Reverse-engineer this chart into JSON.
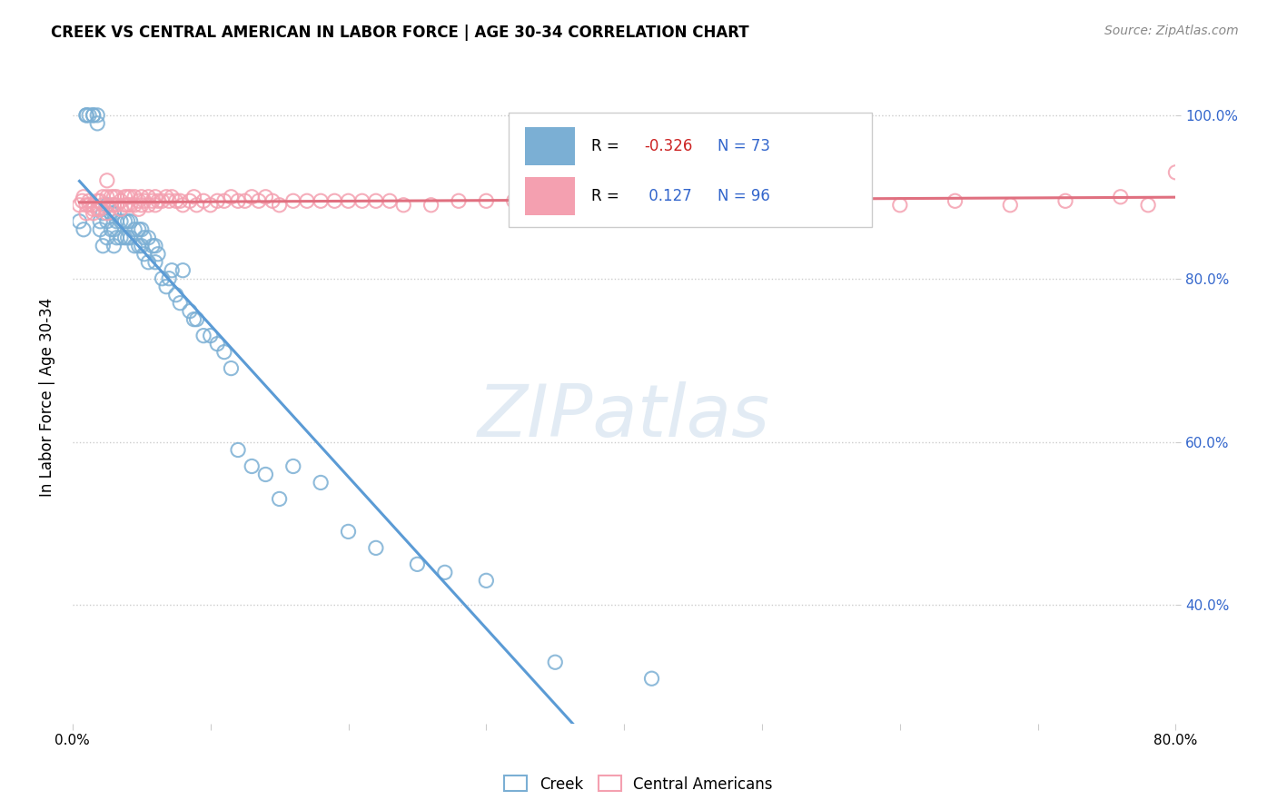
{
  "title": "CREEK VS CENTRAL AMERICAN IN LABOR FORCE | AGE 30-34 CORRELATION CHART",
  "source_text": "Source: ZipAtlas.com",
  "ylabel": "In Labor Force | Age 30-34",
  "ytick_labels": [
    "40.0%",
    "60.0%",
    "80.0%",
    "100.0%"
  ],
  "ytick_values": [
    0.4,
    0.6,
    0.8,
    1.0
  ],
  "xlim": [
    0.0,
    0.8
  ],
  "ylim": [
    0.255,
    1.055
  ],
  "creek_color": "#7bafd4",
  "creek_line_color": "#5b9bd5",
  "central_color": "#f4a0b0",
  "central_line_color": "#e07080",
  "creek_R": -0.326,
  "creek_N": 73,
  "central_R": 0.127,
  "central_N": 96,
  "legend_creek": "Creek",
  "legend_central": "Central Americans",
  "creek_x": [
    0.005,
    0.008,
    0.01,
    0.01,
    0.012,
    0.015,
    0.015,
    0.018,
    0.018,
    0.02,
    0.02,
    0.022,
    0.022,
    0.025,
    0.025,
    0.025,
    0.028,
    0.028,
    0.03,
    0.03,
    0.03,
    0.032,
    0.032,
    0.035,
    0.035,
    0.038,
    0.038,
    0.04,
    0.04,
    0.042,
    0.042,
    0.045,
    0.045,
    0.048,
    0.048,
    0.05,
    0.05,
    0.052,
    0.052,
    0.055,
    0.055,
    0.058,
    0.06,
    0.06,
    0.062,
    0.065,
    0.068,
    0.07,
    0.072,
    0.075,
    0.078,
    0.08,
    0.085,
    0.088,
    0.09,
    0.095,
    0.1,
    0.105,
    0.11,
    0.115,
    0.12,
    0.13,
    0.14,
    0.15,
    0.16,
    0.18,
    0.2,
    0.22,
    0.25,
    0.27,
    0.3,
    0.35,
    0.42
  ],
  "creek_y": [
    0.87,
    0.86,
    1.0,
    1.0,
    1.0,
    1.0,
    1.0,
    1.0,
    0.99,
    0.87,
    0.86,
    0.88,
    0.84,
    0.89,
    0.87,
    0.85,
    0.88,
    0.86,
    0.88,
    0.86,
    0.84,
    0.87,
    0.85,
    0.87,
    0.85,
    0.87,
    0.85,
    0.87,
    0.85,
    0.87,
    0.85,
    0.86,
    0.84,
    0.86,
    0.84,
    0.86,
    0.84,
    0.85,
    0.83,
    0.85,
    0.82,
    0.84,
    0.84,
    0.82,
    0.83,
    0.8,
    0.79,
    0.8,
    0.81,
    0.78,
    0.77,
    0.81,
    0.76,
    0.75,
    0.75,
    0.73,
    0.73,
    0.72,
    0.71,
    0.69,
    0.59,
    0.57,
    0.56,
    0.53,
    0.57,
    0.55,
    0.49,
    0.47,
    0.45,
    0.44,
    0.43,
    0.33,
    0.31
  ],
  "central_x": [
    0.005,
    0.007,
    0.008,
    0.01,
    0.01,
    0.012,
    0.012,
    0.015,
    0.015,
    0.015,
    0.018,
    0.018,
    0.02,
    0.02,
    0.022,
    0.022,
    0.025,
    0.025,
    0.025,
    0.028,
    0.028,
    0.03,
    0.03,
    0.032,
    0.032,
    0.035,
    0.035,
    0.038,
    0.038,
    0.04,
    0.04,
    0.042,
    0.042,
    0.045,
    0.045,
    0.048,
    0.048,
    0.05,
    0.05,
    0.052,
    0.055,
    0.055,
    0.058,
    0.06,
    0.06,
    0.062,
    0.065,
    0.068,
    0.07,
    0.072,
    0.075,
    0.078,
    0.08,
    0.085,
    0.088,
    0.09,
    0.095,
    0.1,
    0.105,
    0.11,
    0.115,
    0.12,
    0.125,
    0.13,
    0.135,
    0.14,
    0.145,
    0.15,
    0.16,
    0.17,
    0.18,
    0.19,
    0.2,
    0.21,
    0.22,
    0.23,
    0.24,
    0.26,
    0.28,
    0.3,
    0.32,
    0.35,
    0.38,
    0.4,
    0.42,
    0.45,
    0.48,
    0.52,
    0.56,
    0.6,
    0.64,
    0.68,
    0.72,
    0.76,
    0.78,
    0.8
  ],
  "central_y": [
    0.89,
    0.895,
    0.9,
    0.89,
    0.88,
    0.89,
    0.895,
    0.89,
    0.885,
    0.88,
    0.895,
    0.885,
    0.895,
    0.885,
    0.9,
    0.89,
    0.92,
    0.9,
    0.88,
    0.9,
    0.89,
    0.9,
    0.89,
    0.9,
    0.89,
    0.895,
    0.885,
    0.9,
    0.89,
    0.9,
    0.89,
    0.9,
    0.89,
    0.9,
    0.89,
    0.895,
    0.885,
    0.9,
    0.89,
    0.895,
    0.9,
    0.89,
    0.895,
    0.9,
    0.89,
    0.895,
    0.895,
    0.9,
    0.895,
    0.9,
    0.895,
    0.895,
    0.89,
    0.895,
    0.9,
    0.89,
    0.895,
    0.89,
    0.895,
    0.895,
    0.9,
    0.895,
    0.895,
    0.9,
    0.895,
    0.9,
    0.895,
    0.89,
    0.895,
    0.895,
    0.895,
    0.895,
    0.895,
    0.895,
    0.895,
    0.895,
    0.89,
    0.89,
    0.895,
    0.895,
    0.895,
    0.895,
    0.895,
    0.9,
    0.895,
    0.9,
    0.895,
    0.895,
    0.895,
    0.89,
    0.895,
    0.89,
    0.895,
    0.9,
    0.89,
    0.93
  ]
}
